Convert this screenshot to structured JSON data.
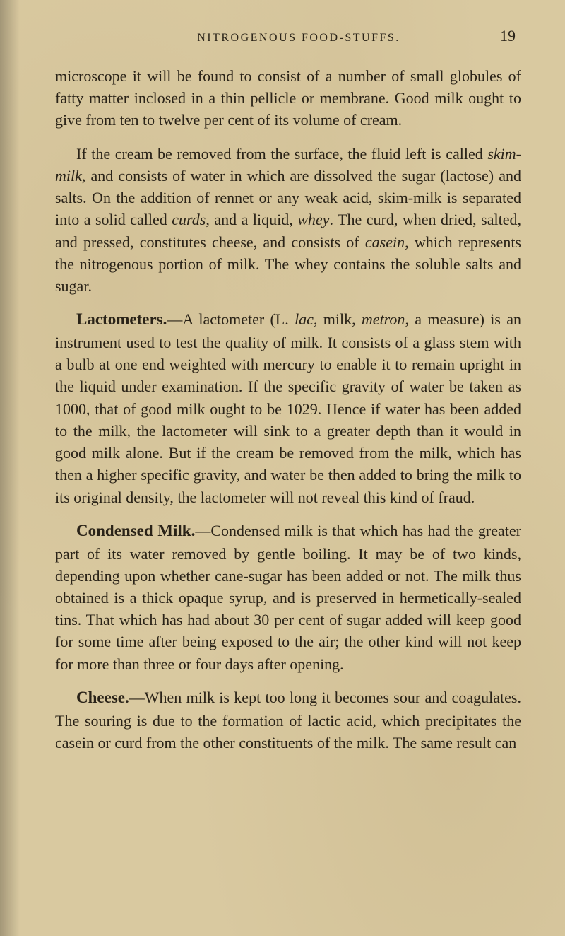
{
  "page": {
    "runningHead": "NITROGENOUS FOOD-STUFFS.",
    "number": "19"
  },
  "paragraphs": {
    "p1": "microscope it will be found to consist of a number of small globules of fatty matter inclosed in a thin pellicle or membrane. Good milk ought to give from ten to twelve per cent of its volume of cream.",
    "p2_a": "If the cream be removed from the surface, the fluid left is called ",
    "p2_skim": "skim-milk",
    "p2_b": ", and consists of water in which are dissolved the sugar (lactose) and salts. On the addition of rennet or any weak acid, skim-milk is separated into a solid called ",
    "p2_curds": "curds",
    "p2_c": ", and a liquid, ",
    "p2_whey": "whey",
    "p2_d": ". The curd, when dried, salted, and pressed, constitutes cheese, and consists of ",
    "p2_casein": "casein",
    "p2_e": ", which represents the nitrogenous portion of milk. The whey contains the soluble salts and sugar.",
    "p3_lead": "Lactometers.",
    "p3_a": "—A lactometer (L. ",
    "p3_lac": "lac",
    "p3_b": ", milk, ",
    "p3_metron": "metron",
    "p3_c": ", a measure) is an instrument used to test the quality of milk. It consists of a glass stem with a bulb at one end weighted with mercury to enable it to remain upright in the liquid under examination. If the specific gravity of water be taken as 1000, that of good milk ought to be 1029. Hence if water has been added to the milk, the lactometer will sink to a greater depth than it would in good milk alone. But if the cream be removed from the milk, which has then a higher specific gravity, and water be then added to bring the milk to its original density, the lactometer will not reveal this kind of fraud.",
    "p4_lead": "Condensed Milk.",
    "p4_a": "—Condensed milk is that which has had the greater part of its water removed by gentle boiling. It may be of two kinds, depending upon whether cane-sugar has been added or not. The milk thus obtained is a thick opaque syrup, and is preserved in hermetically-sealed tins. That which has had about 30 per cent of sugar added will keep good for some time after being exposed to the air; the other kind will not keep for more than three or four days after opening.",
    "p5_lead": "Cheese.",
    "p5_a": "—When milk is kept too long it becomes sour and coagulates. The souring is due to the formation of lactic acid, which precipitates the casein or curd from the other constituents of the milk. The same result can"
  }
}
